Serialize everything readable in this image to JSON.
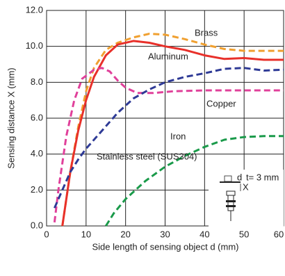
{
  "chart_data": {
    "type": "line",
    "x_label": "Side length of sensing object d (mm)",
    "y_label": "Sensing distance X (mm)",
    "xlim": [
      0,
      60
    ],
    "xticks": [
      0,
      10,
      20,
      30,
      40,
      50,
      60
    ],
    "ylim": [
      0,
      12
    ],
    "yticks": [
      {
        "value": 0,
        "label": "0.0"
      },
      {
        "value": 2,
        "label": "2.0"
      },
      {
        "value": 4,
        "label": "4.0"
      },
      {
        "value": 6,
        "label": "6.0"
      },
      {
        "value": 8,
        "label": "8.0"
      },
      {
        "value": 10,
        "label": "10.0"
      },
      {
        "value": 12,
        "label": "12.0"
      }
    ],
    "grid": true,
    "series": [
      {
        "name": "Brass",
        "color": "#f0a030",
        "dashed": true,
        "x": [
          4,
          6,
          8,
          10,
          12,
          15,
          18,
          22,
          26,
          30,
          35,
          40,
          45,
          50,
          55,
          60
        ],
        "values": [
          0,
          3,
          5.5,
          7.5,
          8.8,
          9.8,
          10.2,
          10.5,
          10.7,
          10.65,
          10.4,
          10.1,
          9.85,
          9.75,
          9.75,
          9.75
        ]
      },
      {
        "name": "Aluminum",
        "color": "#e8302a",
        "dashed": false,
        "x": [
          4,
          6,
          8,
          10,
          12,
          15,
          18,
          22,
          26,
          30,
          35,
          40,
          45,
          50,
          55,
          60
        ],
        "values": [
          0,
          3,
          5.3,
          7,
          8.3,
          9.5,
          10.1,
          10.3,
          10.2,
          10,
          9.8,
          9.5,
          9.3,
          9.35,
          9.25,
          9.25
        ]
      },
      {
        "name": "Copper",
        "color": "#e0409a",
        "dashed": true,
        "x": [
          2,
          3,
          5,
          7,
          9,
          12,
          14,
          16,
          18,
          20,
          23,
          27,
          32,
          40,
          50,
          60
        ],
        "values": [
          0.2,
          2,
          5,
          7,
          8.2,
          8.7,
          8.8,
          8.6,
          8.1,
          7.7,
          7.4,
          7.4,
          7.5,
          7.55,
          7.55,
          7.55
        ]
      },
      {
        "name": "Iron",
        "color": "#2e3a96",
        "dashed": true,
        "x": [
          2,
          4,
          6,
          8,
          10,
          14,
          18,
          22,
          26,
          30,
          35,
          40,
          45,
          50,
          55,
          60
        ],
        "values": [
          1,
          2,
          3,
          3.7,
          4.3,
          5.3,
          6.3,
          7.1,
          7.6,
          8,
          8.3,
          8.5,
          8.75,
          8.8,
          8.65,
          8.7
        ]
      },
      {
        "name": "Stainless steel (SUS304)",
        "color": "#1a9a4a",
        "dashed": true,
        "x": [
          15,
          17,
          20,
          25,
          30,
          35,
          40,
          45,
          50,
          55,
          60
        ],
        "values": [
          0,
          0.7,
          1.5,
          2.5,
          3.3,
          3.9,
          4.4,
          4.8,
          4.95,
          5,
          5
        ]
      }
    ],
    "diagram_labels": [
      "d",
      "X",
      "t= 3 mm"
    ]
  }
}
